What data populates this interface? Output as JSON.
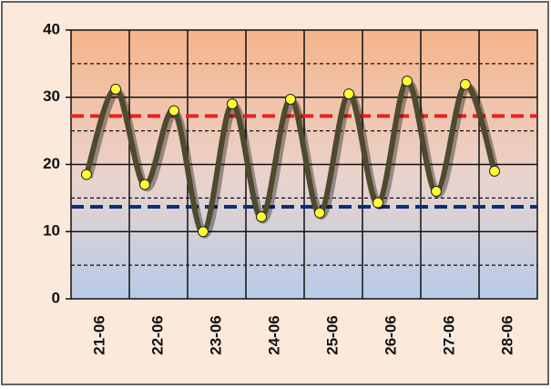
{
  "chart_data": {
    "type": "line",
    "categories": [
      "21-06",
      null,
      "22-06",
      null,
      "23-06",
      null,
      "24-06",
      null,
      "25-06",
      null,
      "26-06",
      null,
      "27-06",
      null,
      "28-06"
    ],
    "series": [
      {
        "color": "#4d4a2e",
        "marker_color": "#ffff33",
        "values": [
          18.5,
          31.2,
          17,
          28,
          10,
          29,
          12.2,
          29.7,
          12.8,
          30.5,
          14.3,
          32.4,
          16,
          31.9,
          19
        ]
      }
    ],
    "ylim": [
      0,
      40
    ],
    "yticks": [
      0,
      10,
      20,
      30,
      40
    ],
    "minor_gridlines": [
      5,
      15,
      25,
      35
    ],
    "reference_lines": [
      {
        "value": 27.2,
        "color": "#e8231c"
      },
      {
        "value": 13.7,
        "color": "#0a2d7a"
      }
    ],
    "grid": true
  }
}
